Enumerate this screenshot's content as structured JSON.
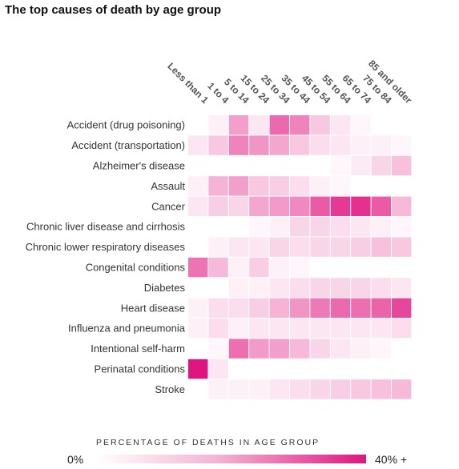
{
  "title": "The top causes of death by age group",
  "chart_data": {
    "type": "heatmap",
    "x": [
      "Less than 1",
      "1 to 4",
      "5 to 14",
      "15 to 24",
      "25 to 34",
      "35 to 44",
      "45 to 54",
      "55 to 64",
      "65 to 74",
      "75 to 84",
      "85 and older"
    ],
    "y": [
      "Accident (drug poisoning)",
      "Accident (transportation)",
      "Alzheimer's disease",
      "Assault",
      "Cancer",
      "Chronic liver disease and cirrhosis",
      "Chronic lower respiratory diseases",
      "Congenital conditions",
      "Diabetes",
      "Heart disease",
      "Influenza and pneumonia",
      "Intentional self-harm",
      "Perinatal conditions",
      "Stroke"
    ],
    "values": [
      [
        0,
        1,
        12,
        2,
        22,
        17,
        6,
        2,
        0.5,
        0,
        0
      ],
      [
        2,
        6,
        17,
        14,
        11,
        6,
        3,
        2,
        1,
        1,
        0.5
      ],
      [
        0,
        0,
        0,
        0,
        0,
        0,
        0,
        0.5,
        1.5,
        4,
        7
      ],
      [
        1,
        9,
        12,
        6,
        5,
        3,
        1,
        0.5,
        0,
        0,
        0
      ],
      [
        2,
        5,
        4,
        11,
        13,
        16,
        25,
        32,
        34,
        25,
        8
      ],
      [
        0,
        0,
        0,
        0.5,
        1,
        4,
        4,
        3,
        2,
        1,
        0.5
      ],
      [
        0,
        1,
        2,
        2,
        4,
        3,
        4,
        4,
        5,
        7,
        6
      ],
      [
        20,
        8,
        1,
        5,
        1,
        0.5,
        0,
        0,
        0,
        0,
        0
      ],
      [
        0,
        0,
        1,
        1,
        2,
        3,
        4,
        4,
        4,
        3,
        2
      ],
      [
        1,
        3,
        3,
        5,
        9,
        14,
        19,
        22,
        21,
        23,
        29
      ],
      [
        1,
        3,
        1,
        2,
        2,
        2,
        2,
        2,
        2,
        2,
        3
      ],
      [
        0,
        0.5,
        21,
        13,
        12,
        8,
        4,
        2,
        1,
        0.5,
        0
      ],
      [
        45,
        2,
        0,
        0,
        0,
        0,
        0,
        0,
        0,
        0,
        0
      ],
      [
        0,
        1,
        1,
        1,
        2,
        3,
        4,
        5,
        6,
        7,
        8
      ]
    ],
    "value_range": [
      0,
      40
    ],
    "colorscale": [
      "#ffffff",
      "#e0157f"
    ],
    "legend": {
      "title": "PERCENTAGE OF DEATHS IN AGE GROUP",
      "min_label": "0%",
      "max_label": "40% +"
    }
  }
}
